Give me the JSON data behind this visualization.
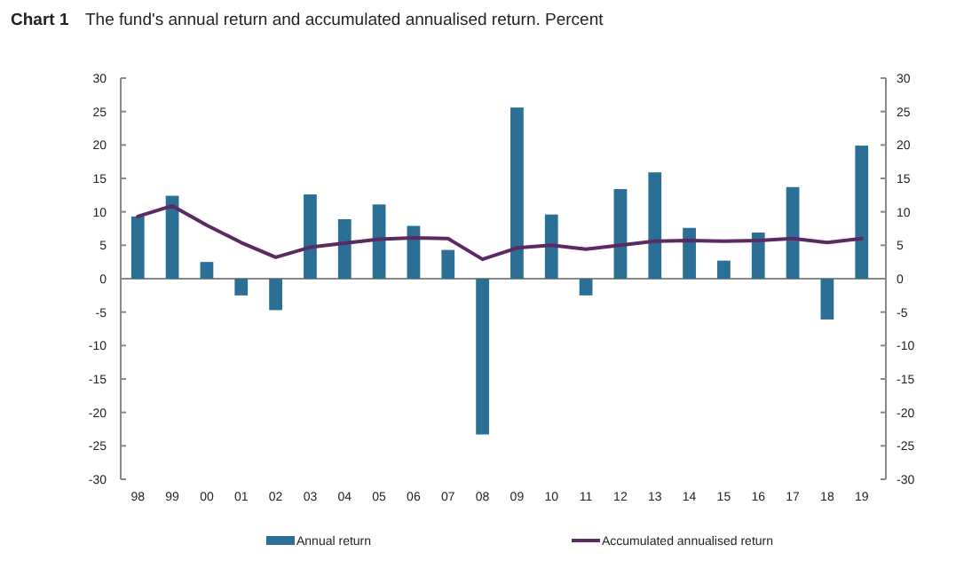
{
  "chart_data": {
    "type": "bar",
    "title": "Chart 1",
    "subtitle": "The fund's annual return and accumulated annualised return. Percent",
    "categories": [
      "98",
      "99",
      "00",
      "01",
      "02",
      "03",
      "04",
      "05",
      "06",
      "07",
      "08",
      "09",
      "10",
      "11",
      "12",
      "13",
      "14",
      "15",
      "16",
      "17",
      "18",
      "19"
    ],
    "series": [
      {
        "name": "Annual return",
        "color": "#2b6f95",
        "values": [
          9.3,
          12.4,
          2.5,
          -2.5,
          -4.7,
          12.6,
          8.9,
          11.1,
          7.9,
          4.3,
          -23.3,
          25.6,
          9.6,
          -2.5,
          13.4,
          15.9,
          7.6,
          2.7,
          6.9,
          13.7,
          -6.1,
          19.9
        ]
      },
      {
        "name": "Accumulated annualised return",
        "type": "line",
        "color": "#5c2a63",
        "values": [
          9.3,
          10.9,
          8.0,
          5.4,
          3.2,
          4.7,
          5.3,
          5.9,
          6.1,
          6.0,
          2.9,
          4.6,
          5.0,
          4.4,
          5.0,
          5.6,
          5.7,
          5.6,
          5.7,
          6.0,
          5.4,
          6.0
        ]
      }
    ],
    "ylim": [
      -30,
      30
    ],
    "yticks": [
      -30,
      -25,
      -20,
      -15,
      -10,
      -5,
      0,
      5,
      10,
      15,
      20,
      25,
      30
    ],
    "y2lim": [
      -30,
      30
    ],
    "y2ticks": [
      -30,
      -25,
      -20,
      -15,
      -10,
      -5,
      0,
      5,
      10,
      15,
      20,
      25,
      30
    ],
    "legend": "bottom",
    "marker": "none",
    "line_style": "solid"
  }
}
